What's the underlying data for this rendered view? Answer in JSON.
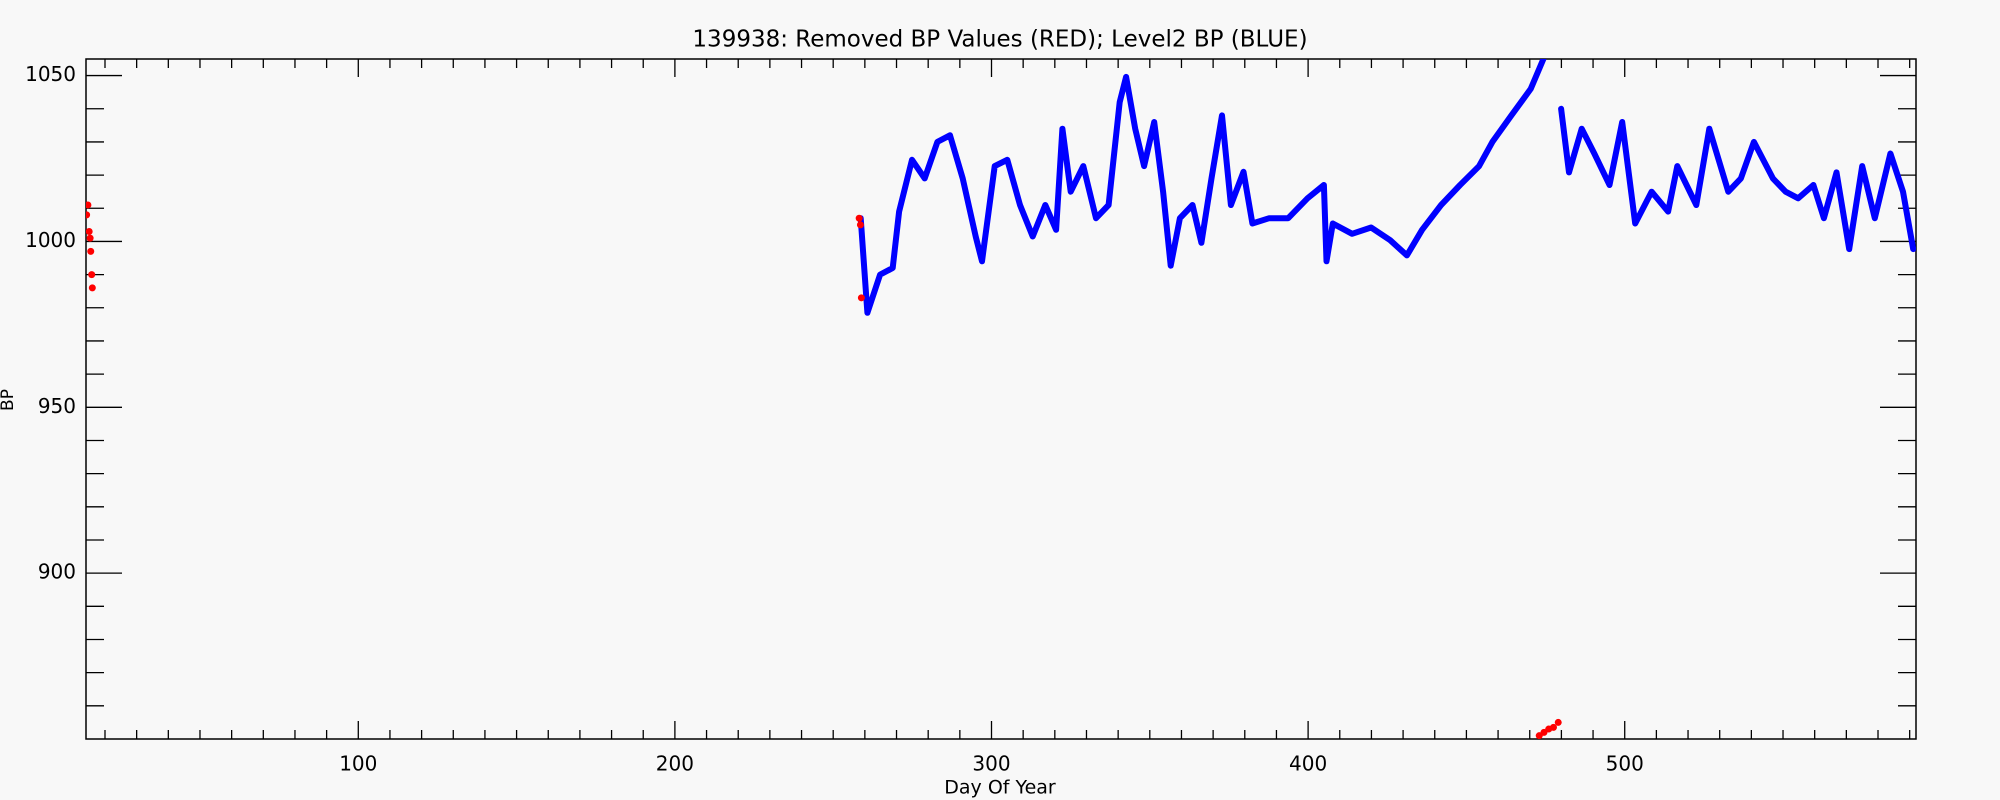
{
  "chart_data": {
    "type": "scatter",
    "title": "139938: Removed BP Values (RED); Level2 BP (BLUE)",
    "x_label": "Day Of Year",
    "y_label": "BP",
    "xlim": [
      14,
      592
    ],
    "ylim": [
      850,
      1055
    ],
    "xticks": [
      100,
      200,
      300,
      400,
      500
    ],
    "yticks": [
      900,
      950,
      1000,
      1050
    ],
    "xminorticks": [
      20,
      30,
      40,
      50,
      60,
      70,
      80,
      90,
      110,
      120,
      130,
      140,
      150,
      160,
      170,
      180,
      190,
      210,
      220,
      230,
      240,
      250,
      260,
      270,
      280,
      290,
      310,
      320,
      330,
      340,
      350,
      360,
      370,
      380,
      390,
      410,
      420,
      430,
      440,
      450,
      460,
      470,
      480,
      490,
      510,
      520,
      530,
      540,
      550,
      560,
      570,
      580,
      590
    ],
    "yminorticks": [
      860,
      870,
      880,
      890,
      910,
      920,
      930,
      940,
      960,
      970,
      980,
      990,
      1010,
      1020,
      1030,
      1040
    ],
    "series": [
      {
        "color": "#0000ff",
        "mode": "lines",
        "x": [
          258.7,
          260.8,
          264.8,
          268.8,
          270.8,
          274.9,
          278.9,
          282.9,
          286.9,
          290.9,
          295,
          297,
          301,
          305,
          309,
          313,
          317,
          320.4,
          322.4,
          325,
          329,
          333,
          337,
          340.5,
          342.5,
          345.4,
          348.2,
          351.4,
          354.2,
          356.6,
          359.5,
          363.5,
          366.3,
          369.5,
          372.8,
          375.6,
          379.6,
          382.4,
          387.7,
          393.7,
          399.8,
          405,
          405.8,
          407.8,
          413.9,
          419.9,
          425.9,
          431.2,
          436,
          442,
          448,
          454,
          458.2,
          464.2,
          470.3,
          474.3,
          477,
          479.9,
          482.4,
          486.4,
          490.4,
          495.2,
          499.2,
          503.3,
          508.5,
          513.7,
          516.6,
          522.6,
          526.7,
          532.7,
          536.7,
          540.8,
          546.8,
          550.8,
          554.8,
          559.6,
          562.9,
          566.9,
          570.9,
          575,
          579,
          583.9,
          587.9,
          591.1
        ],
        "values": [
          1007,
          978.5,
          990,
          992,
          1009,
          1024.6,
          1019,
          1030,
          1032,
          1019,
          1001.5,
          994,
          1022.7,
          1024.6,
          1011,
          1001.5,
          1011,
          1003.5,
          1034,
          1015,
          1022.7,
          1007,
          1011,
          1042,
          1049.6,
          1034,
          1022.7,
          1036,
          1015,
          992.7,
          1007,
          1011,
          999.6,
          1019,
          1038,
          1011,
          1021,
          1005.4,
          1007,
          1007,
          1013,
          1017,
          994,
          1005.4,
          1002.3,
          1004.2,
          1000.4,
          995.8,
          1003.5,
          1011,
          1017,
          1022.7,
          1030,
          1038,
          1046,
          1055,
          null,
          1040,
          1020.8,
          1034,
          1026.5,
          1017,
          1036,
          1005.4,
          1015,
          1009,
          1022.7,
          1011,
          1034,
          1015,
          1019,
          1030,
          1019,
          1015,
          1013,
          1017,
          1007,
          1020.8,
          997.7,
          1022.7,
          1007,
          1026.5,
          1015,
          997.7
        ]
      },
      {
        "color": "#ff0000",
        "mode": "markers",
        "x": [
          14.2,
          14.6,
          15,
          15.3,
          15.5,
          15.8,
          16,
          258.2,
          258.6,
          258.9,
          473,
          474.5,
          476,
          477.5,
          479
        ],
        "values": [
          1008,
          1011,
          1003,
          1001,
          997,
          990,
          986,
          1007,
          1005,
          983,
          851,
          852,
          853,
          853.5,
          855
        ]
      }
    ]
  }
}
